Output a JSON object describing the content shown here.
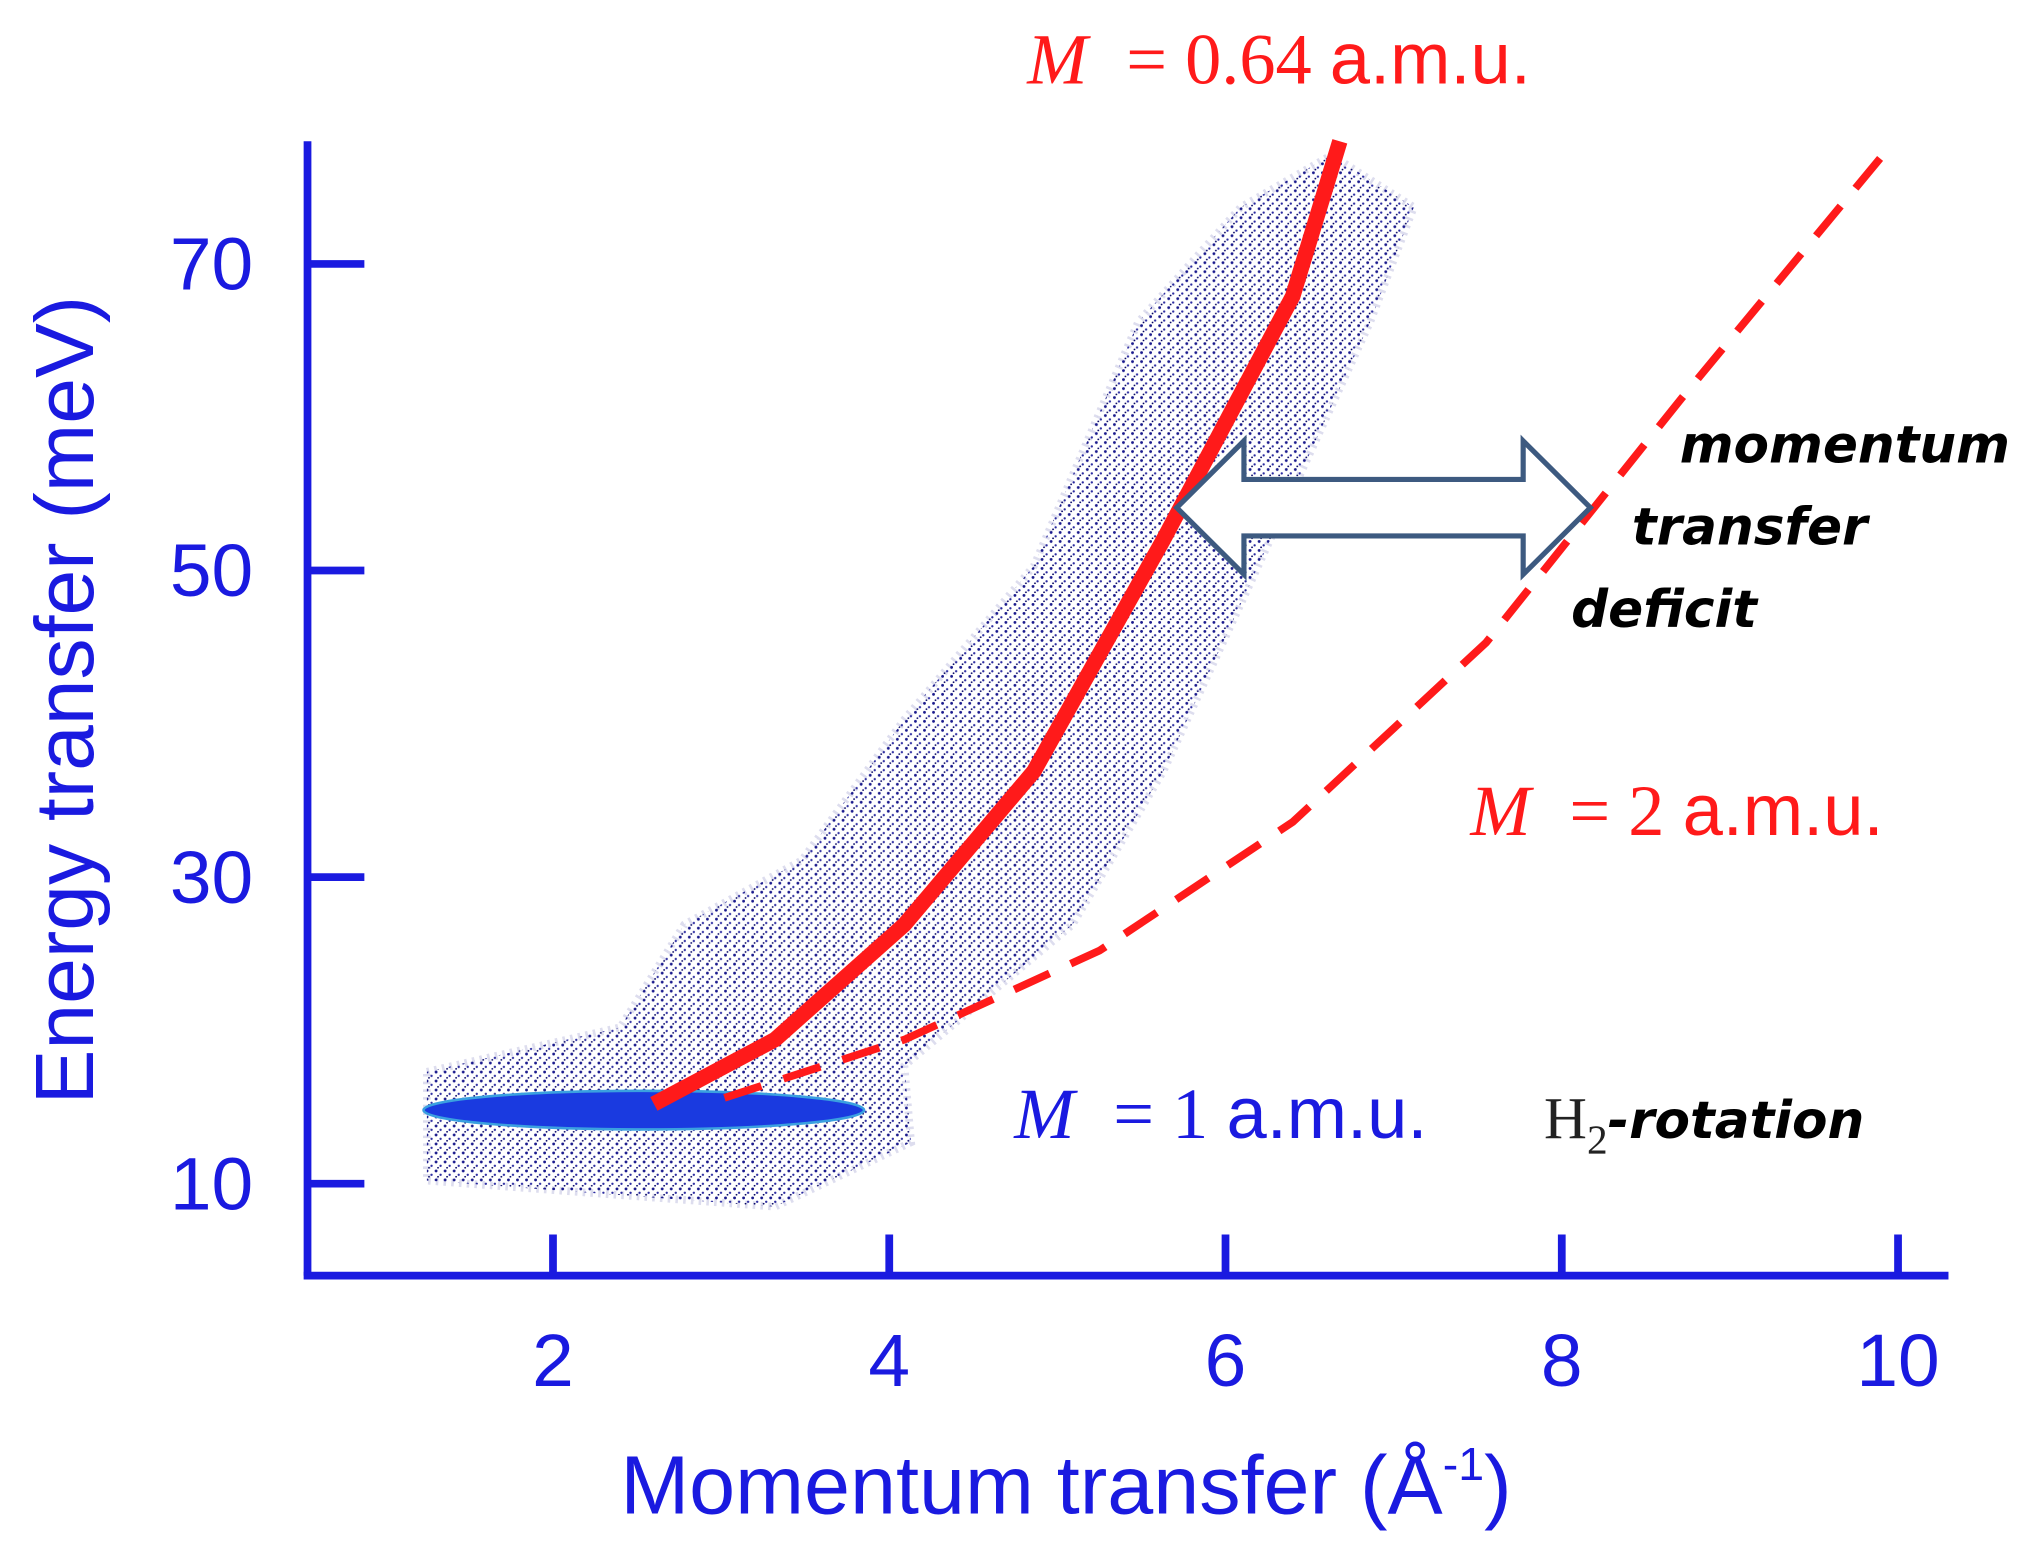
{
  "chart_data": {
    "type": "line",
    "x_label": {
      "main": "Momentum transfer (Å",
      "sup": "-1",
      "end": ")"
    },
    "y_label": "Energy transfer (meV)",
    "xlim": [
      0.54,
      10.3
    ],
    "ylim": [
      4,
      78
    ],
    "xticks": [
      2,
      4,
      6,
      8,
      10
    ],
    "yticks": [
      10,
      30,
      50,
      70
    ],
    "axis_color": "#1a1ae0",
    "series": [
      {
        "name": "M = 0.64 a.m.u.",
        "color": "#ff1a1a",
        "style": "solid",
        "x": [
          2.6,
          3.32,
          4.09,
          4.86,
          5.63,
          6.4,
          6.68
        ],
        "values": [
          15.2,
          19.4,
          26.9,
          36.9,
          52,
          67.9,
          78
        ]
      },
      {
        "name": "M = 2 a.m.u.",
        "color": "#ff1a1a",
        "style": "dashed",
        "x": [
          3.02,
          4.09,
          5.25,
          6.4,
          7.55,
          8.71,
          9.94
        ],
        "values": [
          15.6,
          19.4,
          25.2,
          33.6,
          45.3,
          61.2,
          77.5
        ]
      }
    ],
    "cloud": {
      "color": "#1a1a8c",
      "x": [
        1.25,
        2.4,
        2.78,
        3.48,
        4.09,
        4.86,
        5.48,
        6.09,
        6.63,
        7.12,
        6.86,
        6.09,
        5.63,
        5.09,
        4.09,
        4.13,
        3.32,
        1.25
      ],
      "y": [
        17.3,
        20.2,
        26.9,
        31.1,
        40.3,
        50.3,
        66.2,
        73.7,
        77.1,
        73.7,
        66.2,
        47.8,
        36.9,
        26.9,
        17.7,
        12.7,
        8.5,
        10.2
      ]
    },
    "ellipse": {
      "x": 2.54,
      "y": 14.8,
      "rx": 1.31,
      "ry": 1.26,
      "color": "#1a3ae0"
    },
    "arrow": {
      "x": [
        5.71,
        8.17
      ],
      "y": 54.1,
      "color": "#3d5a80"
    },
    "labels": {
      "m064": {
        "symbol": "M",
        "eq": "= 0.64",
        "unit": "a.m.u."
      },
      "m2": {
        "symbol": "M",
        "eq": "= 2",
        "unit": "a.m.u."
      },
      "m1": {
        "symbol": "M",
        "eq": "= 1",
        "unit": "a.m.u."
      },
      "h2": {
        "base": "H",
        "sub": "2",
        "rest": "-rotation"
      },
      "deficit": [
        "momentum",
        "transfer",
        "deficit"
      ]
    }
  }
}
